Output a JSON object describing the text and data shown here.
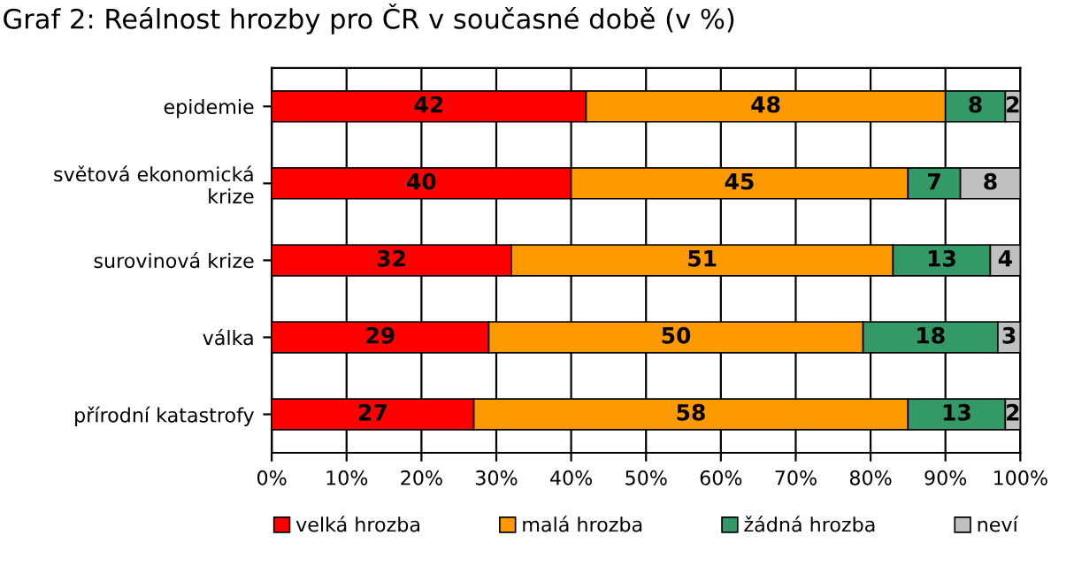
{
  "chart_data": {
    "type": "bar",
    "orientation": "horizontal",
    "stacked": true,
    "title": "Graf 2: Reálnost hrozby pro ČR v současné době (v %)",
    "categories": [
      "epidemie",
      "světová ekonomická\nkrize",
      "surovinová krize",
      "válka",
      "přírodní katastrofy"
    ],
    "series": [
      {
        "name": "velká hrozba",
        "color": "#ff0000",
        "values": [
          42,
          40,
          32,
          29,
          27
        ]
      },
      {
        "name": "malá hrozba",
        "color": "#ff9900",
        "values": [
          48,
          45,
          51,
          50,
          58
        ]
      },
      {
        "name": "žádná hrozba",
        "color": "#339966",
        "values": [
          8,
          7,
          13,
          18,
          13
        ]
      },
      {
        "name": "neví",
        "color": "#c0c0c0",
        "values": [
          2,
          8,
          4,
          3,
          2
        ]
      }
    ],
    "xlim": [
      0,
      100
    ],
    "xticks": [
      {
        "value": 0,
        "label": "0%"
      },
      {
        "value": 10,
        "label": "10%"
      },
      {
        "value": 20,
        "label": "20%"
      },
      {
        "value": 30,
        "label": "30%"
      },
      {
        "value": 40,
        "label": "40%"
      },
      {
        "value": 50,
        "label": "50%"
      },
      {
        "value": 60,
        "label": "60%"
      },
      {
        "value": 70,
        "label": "70%"
      },
      {
        "value": 80,
        "label": "80%"
      },
      {
        "value": 90,
        "label": "90%"
      },
      {
        "value": 100,
        "label": "100%"
      }
    ],
    "grid": "x",
    "legend": "bottom",
    "data_labels": true
  }
}
